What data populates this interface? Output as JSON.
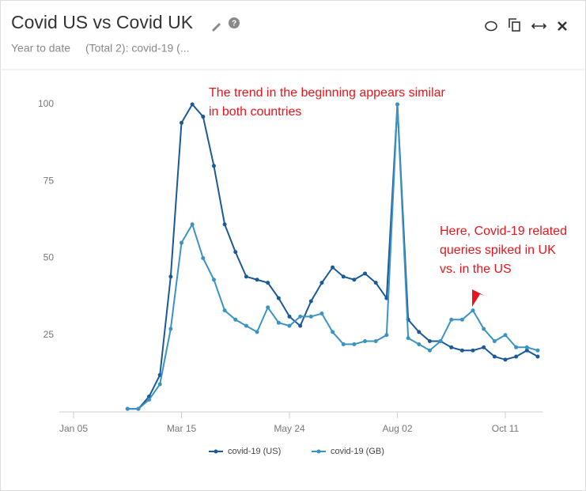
{
  "chart_data": {
    "type": "line",
    "title": "Covid US vs Covid UK",
    "subtitle": "Year to date",
    "subtitle_detail": "(Total 2): covid-19 (...",
    "x": [
      "Feb 09",
      "Feb 16",
      "Feb 23",
      "Mar 01",
      "Mar 08",
      "Mar 15",
      "Mar 22",
      "Mar 29",
      "Apr 05",
      "Apr 12",
      "Apr 19",
      "Apr 26",
      "May 03",
      "May 10",
      "May 17",
      "May 24",
      "May 31",
      "Jun 07",
      "Jun 14",
      "Jun 21",
      "Jun 28",
      "Jul 05",
      "Jul 12",
      "Jul 19",
      "Jul 26",
      "Aug 02",
      "Aug 09",
      "Aug 16",
      "Aug 23",
      "Aug 30",
      "Sep 06",
      "Sep 13",
      "Sep 20",
      "Sep 27",
      "Oct 04",
      "Oct 11",
      "Oct 18",
      "Oct 25",
      "Nov 01"
    ],
    "series": [
      {
        "name": "covid-19 (US)",
        "color": "#1a5a96",
        "values": [
          1,
          1,
          5,
          12,
          44,
          94,
          100,
          96,
          80,
          61,
          52,
          44,
          43,
          42,
          37,
          31,
          28,
          36,
          42,
          47,
          44,
          43,
          45,
          42,
          37,
          100,
          30,
          26,
          23,
          23,
          21,
          20,
          20,
          21,
          18,
          17,
          18,
          20,
          18
        ]
      },
      {
        "name": "covid-19 (GB)",
        "color": "#3a93c3",
        "values": [
          1,
          1,
          4,
          9,
          27,
          55,
          61,
          50,
          43,
          33,
          30,
          28,
          26,
          34,
          29,
          28,
          31,
          31,
          32,
          26,
          22,
          22,
          23,
          23,
          25,
          100,
          24,
          22,
          20,
          23,
          30,
          30,
          33,
          27,
          23,
          25,
          21,
          21,
          20
        ]
      }
    ],
    "xticks": [
      "Jan 05",
      "Mar 15",
      "May 24",
      "Aug 02",
      "Oct 11"
    ],
    "ylim": [
      0,
      100
    ],
    "yticks": [
      25,
      50,
      75,
      100
    ],
    "annotations": [
      "The trend in the beginning appears similar",
      "in both countries",
      "Here, Covid-19 related",
      "queries spiked in UK",
      "vs. in the US"
    ],
    "legend": "bottom"
  }
}
